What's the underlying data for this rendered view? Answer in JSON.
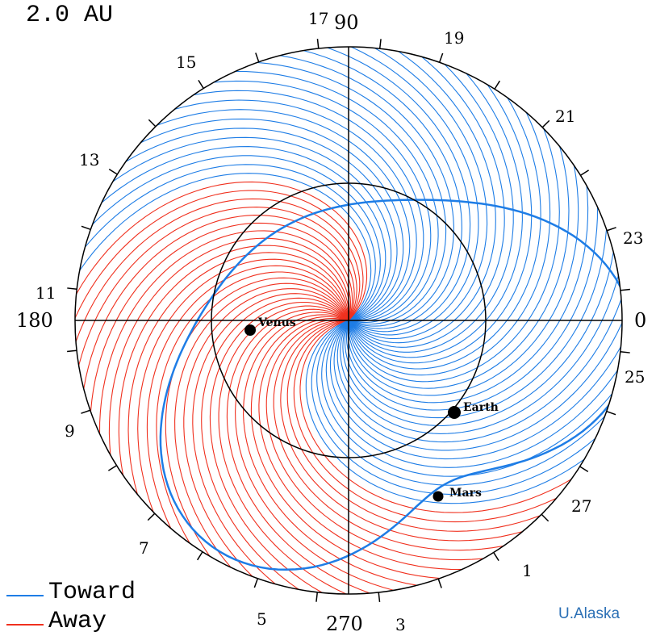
{
  "scale_label": "2.0 AU",
  "credit": "U.Alaska",
  "colors": {
    "toward": "#1e7de6",
    "away": "#f0301e",
    "axis": "#000000",
    "credit": "#2a6fb5"
  },
  "legend": [
    {
      "label": "Toward",
      "color": "#1e7de6"
    },
    {
      "label": "Away",
      "color": "#f0301e"
    }
  ],
  "angle_labels": [
    "0",
    "90",
    "180",
    "270"
  ],
  "day_labels": [
    "1",
    "3",
    "5",
    "7",
    "9",
    "11",
    "13",
    "15",
    "17",
    "19",
    "21",
    "23",
    "25",
    "27"
  ],
  "planets": [
    {
      "name": "Venus"
    },
    {
      "name": "Earth"
    },
    {
      "name": "Mars"
    }
  ]
}
